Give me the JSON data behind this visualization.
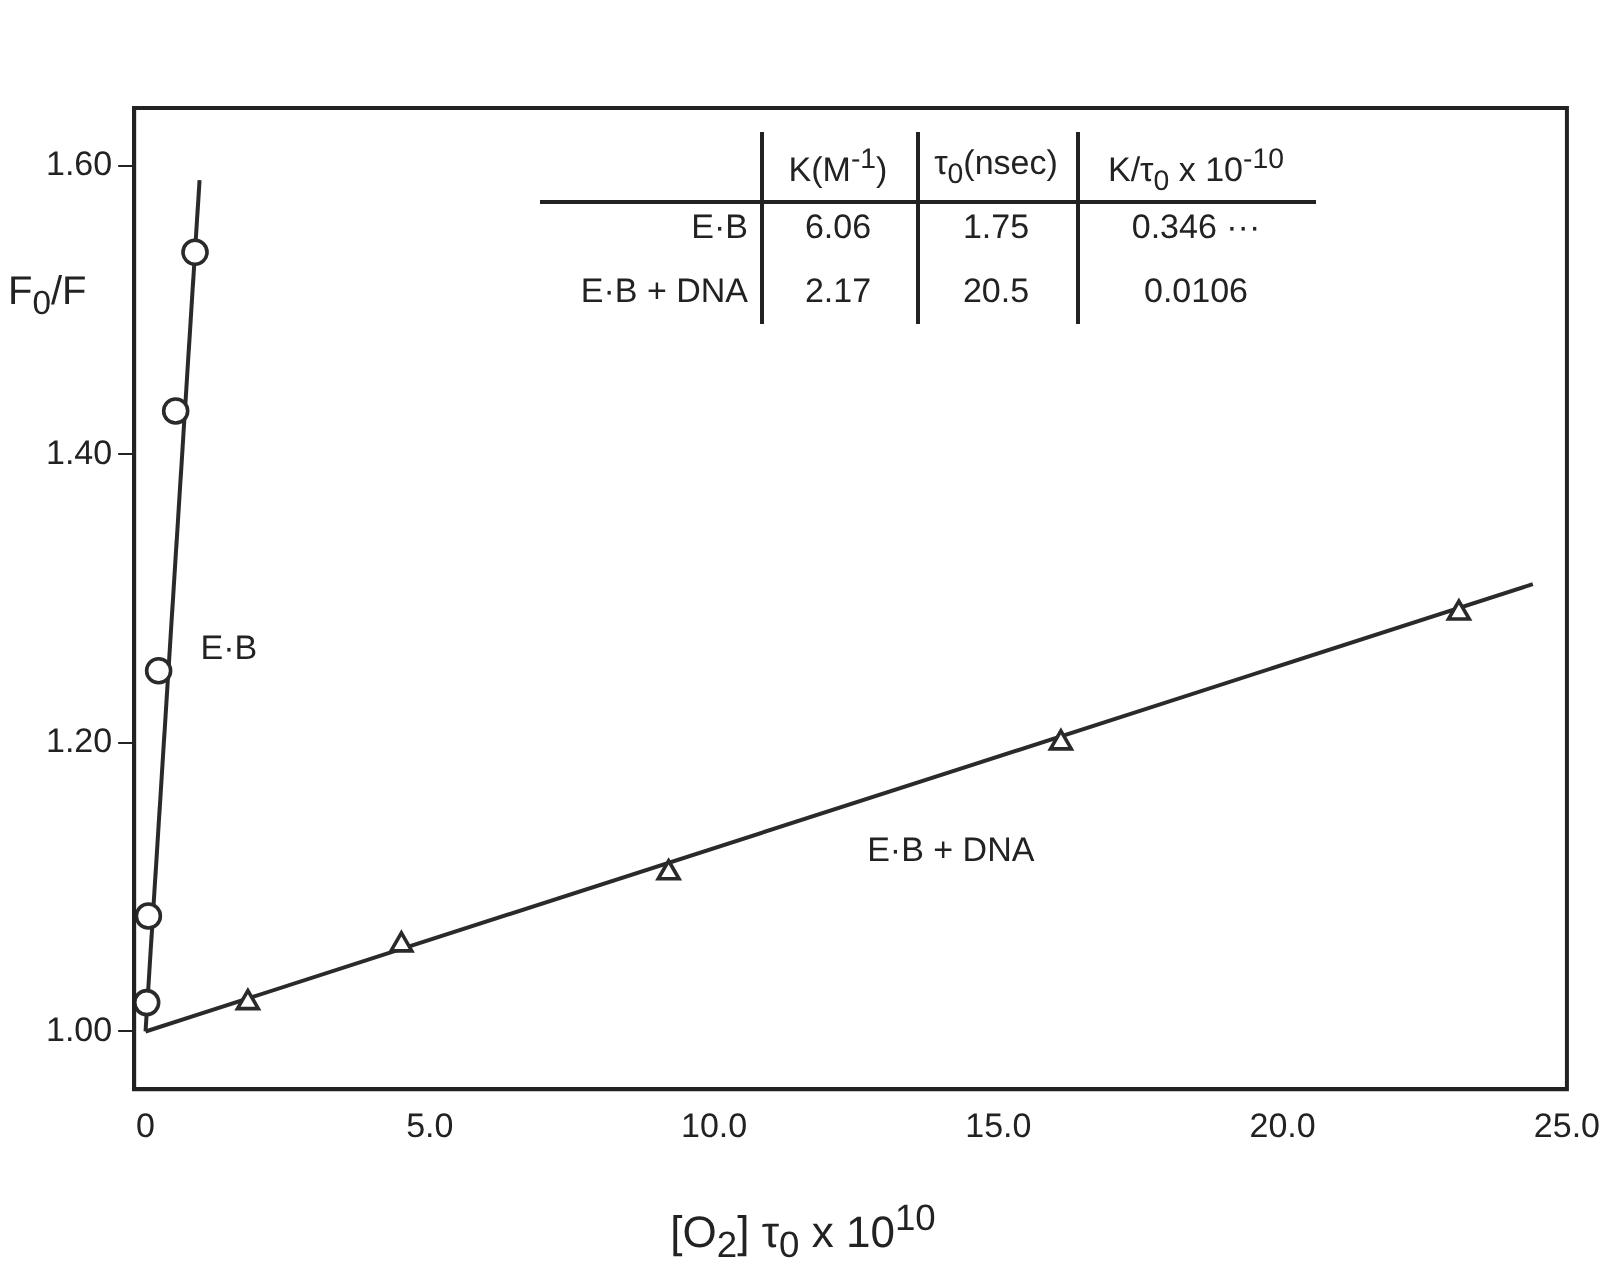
{
  "chart_data": {
    "type": "scatter",
    "xlabel": "[O$_{2}$] τ$_{0}$ x 10$^{10}$",
    "ylabel": "F$_{0}$/F",
    "xlim": [
      -0.2,
      25
    ],
    "xticks": [
      0,
      {
        "value": 5,
        "label": "5.0"
      },
      {
        "value": 10,
        "label": "10.0"
      },
      {
        "value": 15,
        "label": "15.0"
      },
      {
        "value": 20,
        "label": "20.0"
      },
      {
        "value": 25,
        "label": "25.0"
      }
    ],
    "ylim": [
      0.96,
      1.64
    ],
    "yticks": [
      {
        "value": 1,
        "label": "1.00"
      },
      {
        "value": 1.2,
        "label": "1.20"
      },
      {
        "value": 1.4,
        "label": "1.40"
      },
      {
        "value": 1.6,
        "label": "1.60"
      }
    ],
    "grid": false,
    "legend": false,
    "series": [
      {
        "type": "scatter",
        "marker": "circle",
        "color": "#2a2a2a",
        "x": [
          0.02,
          0.05,
          0.23,
          0.53,
          0.87
        ],
        "values": [
          1.02,
          1.08,
          1.25,
          1.43,
          1.54
        ]
      },
      {
        "type": "line",
        "name": "E·B",
        "marker": "none",
        "color": "#2a2a2a",
        "x": [
          0,
          0.95
        ],
        "values": [
          1.0,
          1.59
        ]
      },
      {
        "type": "scatter",
        "marker": "triangle",
        "color": "#2a2a2a",
        "x": [
          1.8,
          4.5,
          9.2,
          16.1,
          23.1
        ],
        "values": [
          1.02,
          1.06,
          1.11,
          1.2,
          1.29
        ]
      },
      {
        "type": "line",
        "name": "E·B + DNA",
        "marker": "none",
        "color": "#2a2a2a",
        "x": [
          0,
          24.4
        ],
        "values": [
          1.0,
          1.31
        ]
      }
    ],
    "annotations": [
      "K(M$^{-1}$)",
      "τ$_{0}$(nsec)",
      "K/τ$_{0}$ x 10$^{-10}$",
      "E·B",
      "6.06",
      "1.75",
      "0.346 ···",
      "E·B + DNA",
      "2.17",
      "20.5",
      "0.0106"
    ]
  }
}
